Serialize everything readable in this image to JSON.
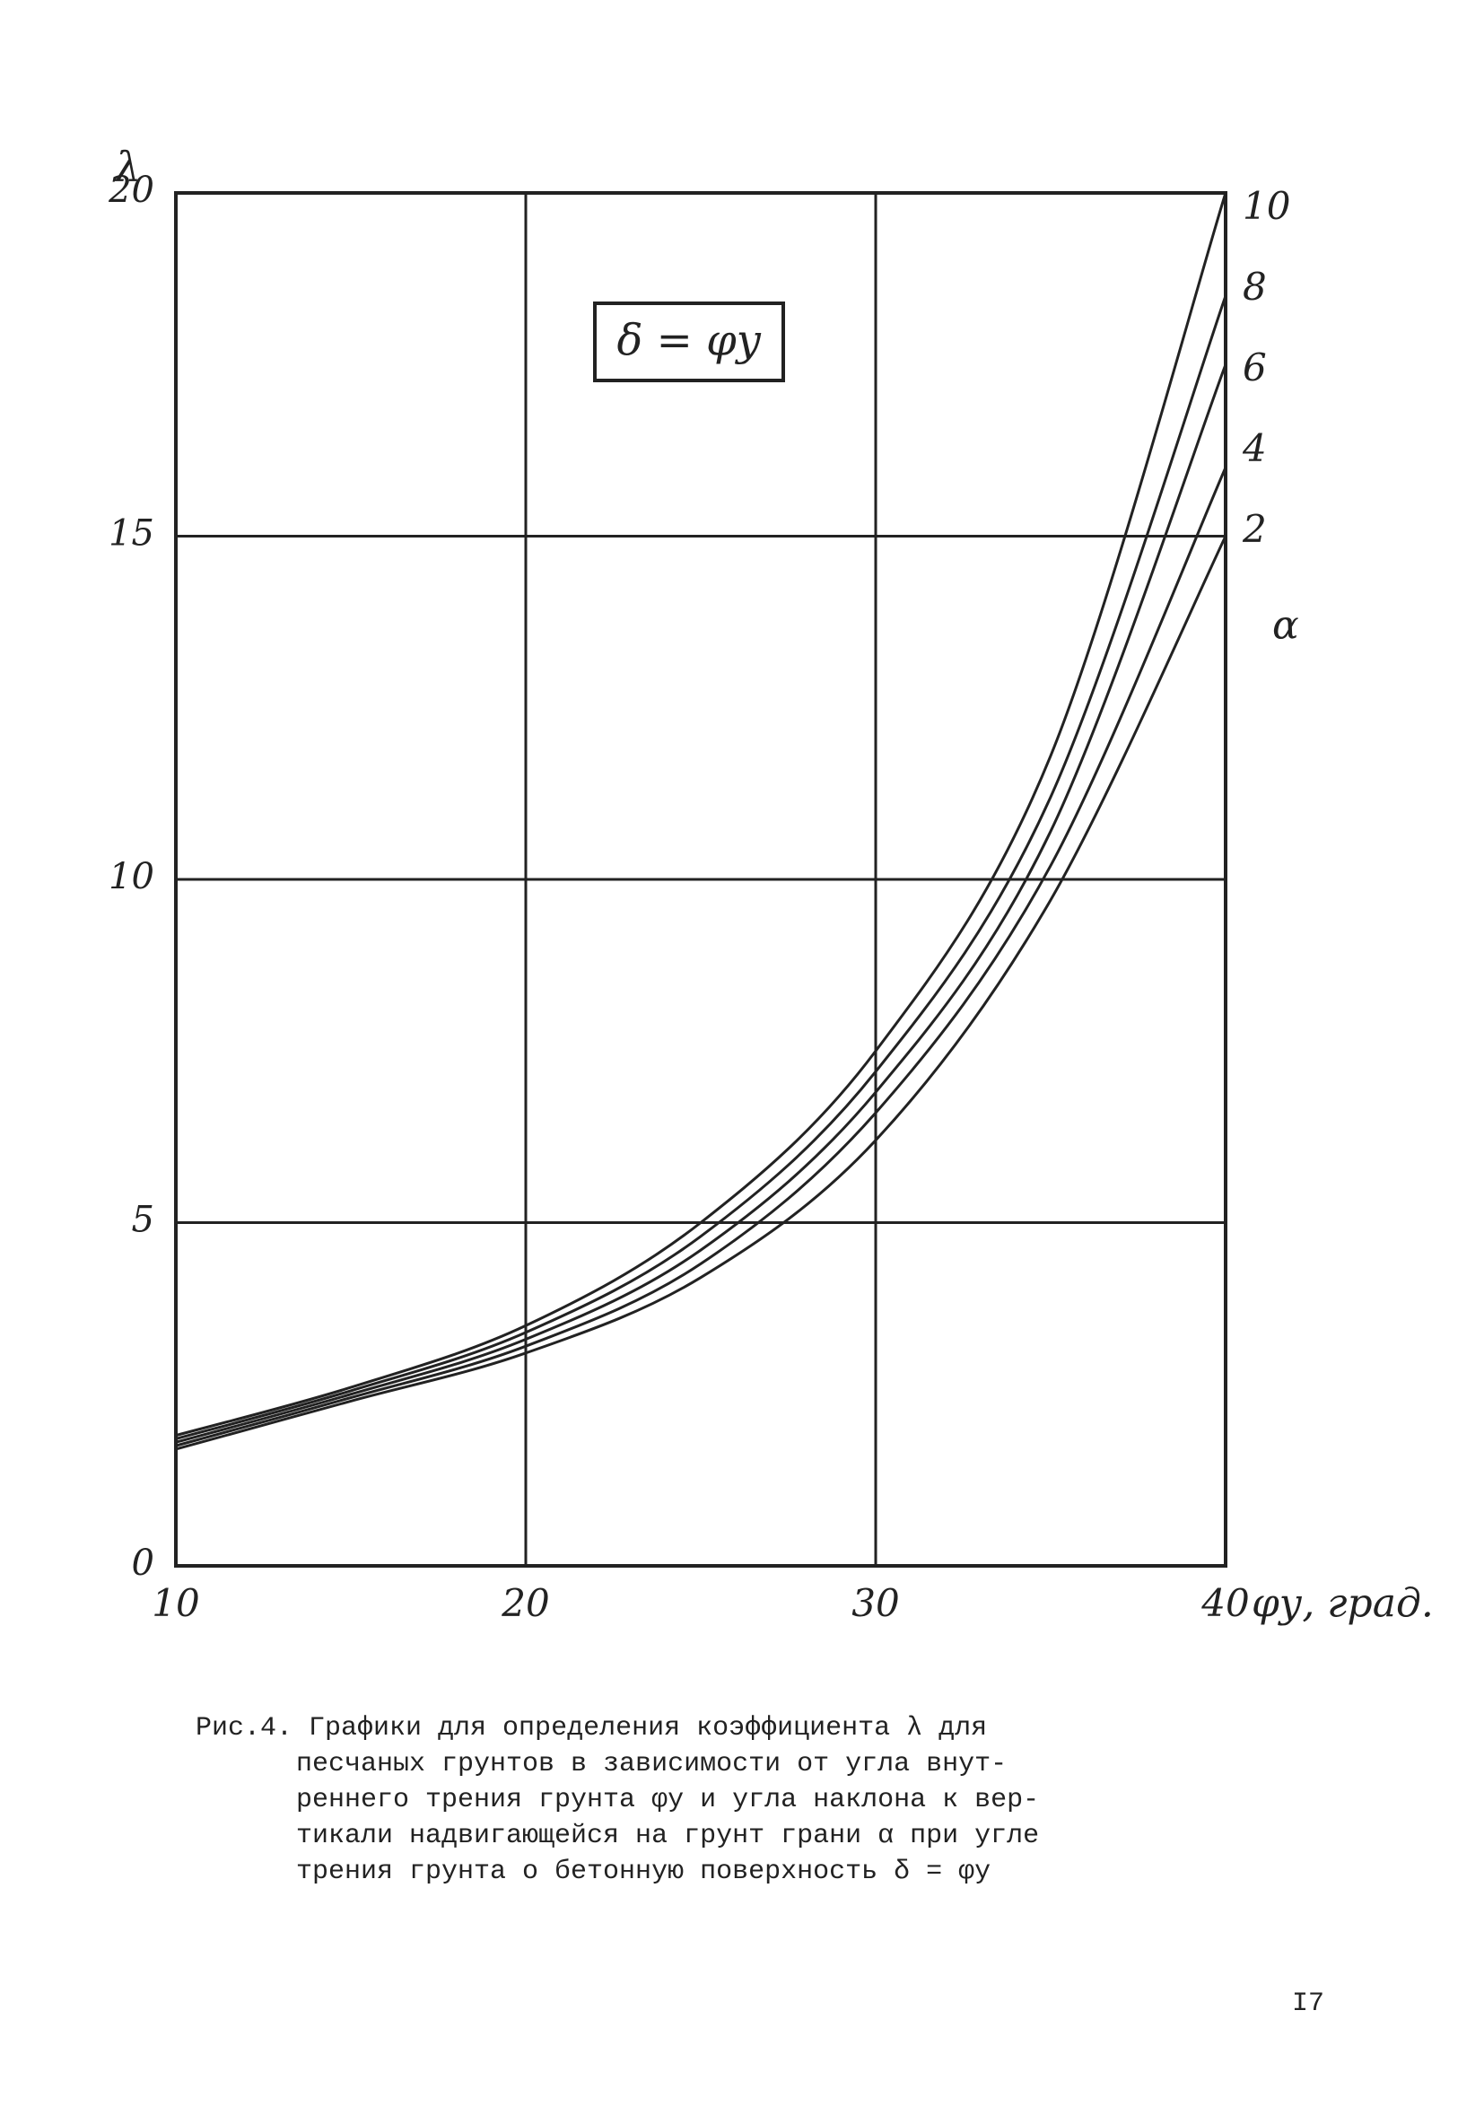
{
  "chart_data": {
    "type": "line",
    "y_label": "λ",
    "x_label": "φу, град.",
    "annotation": "δ = φу",
    "legend_title": "α",
    "x": [
      10,
      15,
      20,
      25,
      30,
      35,
      40
    ],
    "series": [
      {
        "name": "10",
        "color": "#222222",
        "values": [
          1.9,
          2.6,
          3.5,
          5.0,
          7.5,
          11.8,
          20
        ]
      },
      {
        "name": "8",
        "color": "#222222",
        "values": [
          1.85,
          2.55,
          3.4,
          4.8,
          7.2,
          11.2,
          18.5
        ]
      },
      {
        "name": "6",
        "color": "#222222",
        "values": [
          1.8,
          2.5,
          3.3,
          4.6,
          6.9,
          10.7,
          17.5
        ]
      },
      {
        "name": "4",
        "color": "#222222",
        "values": [
          1.75,
          2.45,
          3.2,
          4.4,
          6.6,
          10.2,
          16
        ]
      },
      {
        "name": "2",
        "color": "#222222",
        "values": [
          1.7,
          2.4,
          3.1,
          4.2,
          6.2,
          9.7,
          15
        ]
      }
    ],
    "xlim": [
      10,
      40
    ],
    "xticks": [
      10,
      20,
      30,
      40
    ],
    "ylim": [
      0,
      20
    ],
    "yticks": [
      0,
      5,
      10,
      15,
      20
    ],
    "grid": true
  },
  "caption": {
    "lines": [
      "Рис.4. Графики для определения коэффициента λ для",
      "песчаных грунтов в зависимости от угла внут-",
      "реннего трения грунта φу и угла наклона к вер-",
      "тикали надвигающейся на грунт грани α при угле",
      "трения грунта о бетонную поверхность δ = φу"
    ]
  },
  "page_number": "I7"
}
